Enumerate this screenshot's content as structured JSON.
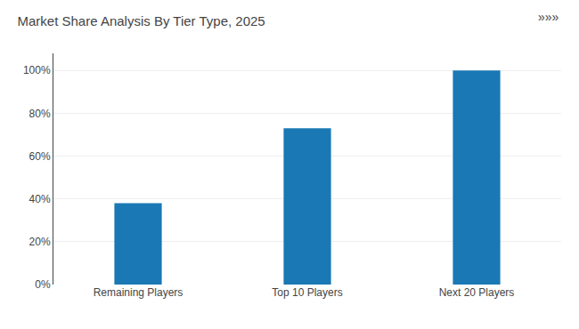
{
  "chart_data": {
    "type": "bar",
    "title": "Market Share Analysis By Tier Type, 2025",
    "categories": [
      "Remaining Players",
      "Top 10 Players",
      "Next 20 Players"
    ],
    "values": [
      38,
      73,
      100
    ],
    "color": "#1a78b4",
    "ylim": [
      0,
      108
    ],
    "yticks": [
      {
        "value": 0,
        "label": "0%"
      },
      {
        "value": 20,
        "label": "20%"
      },
      {
        "value": 40,
        "label": "40%"
      },
      {
        "value": 60,
        "label": "60%"
      },
      {
        "value": 80,
        "label": "80%"
      },
      {
        "value": 100,
        "label": "100%"
      }
    ],
    "grid": true,
    "annotations": [
      "»»»"
    ]
  }
}
